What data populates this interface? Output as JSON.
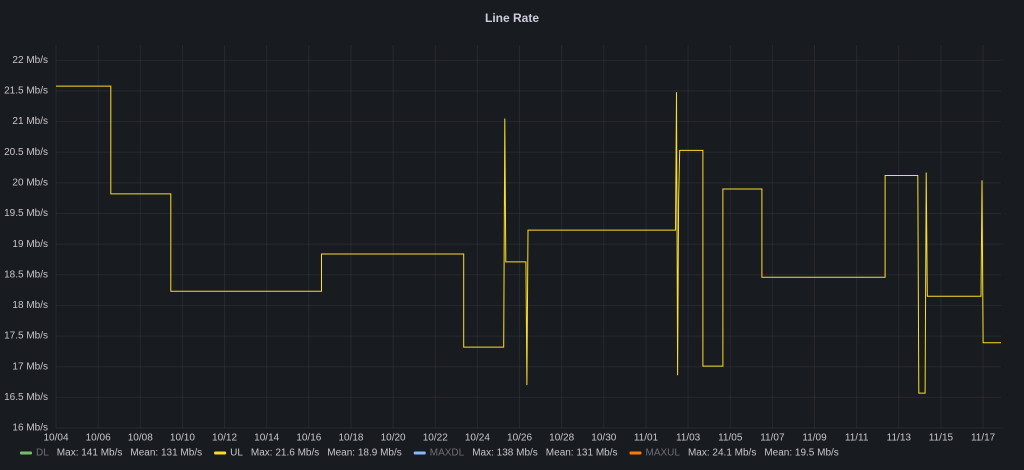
{
  "chart_data": {
    "type": "line",
    "title": "Line Rate",
    "x": [
      0,
      2.6,
      2.6,
      5.45,
      5.45,
      12.6,
      12.6,
      19.35,
      19.35,
      21.25,
      21.3,
      21.35,
      22.3,
      22.35,
      22.4,
      29.4,
      29.45,
      29.5,
      29.55,
      29.6,
      30.7,
      30.7,
      31.65,
      31.65,
      33.5,
      33.5,
      39.35,
      39.35,
      40.9,
      40.95,
      41.25,
      41.3,
      41.35,
      43.9,
      43.95,
      44.0,
      44.85
    ],
    "series": [
      {
        "name": "DL",
        "color": "#73bf69",
        "hidden": true,
        "max": "Max: 141 Mb/s",
        "mean": "Mean: 131 Mb/s"
      },
      {
        "name": "UL",
        "color": "#fade2a",
        "hidden": false,
        "max": "Max: 21.6 Mb/s",
        "mean": "Mean: 18.9 Mb/s",
        "values": [
          21.58,
          21.58,
          19.82,
          19.82,
          18.23,
          18.23,
          18.84,
          18.84,
          17.32,
          17.32,
          21.05,
          18.71,
          18.71,
          16.7,
          19.23,
          19.23,
          21.48,
          16.86,
          19.72,
          20.53,
          20.53,
          17.01,
          17.01,
          19.9,
          19.9,
          18.46,
          18.46,
          20.12,
          20.12,
          16.57,
          16.57,
          20.17,
          18.15,
          18.15,
          20.04,
          17.39,
          17.39
        ]
      },
      {
        "name": "MAXDL",
        "color": "#8ab8ff",
        "hidden": true,
        "max": "Max: 138 Mb/s",
        "mean": "Mean: 131 Mb/s"
      },
      {
        "name": "MAXUL",
        "color": "#ff780a",
        "hidden": true,
        "max": "Max: 24.1 Mb/s",
        "mean": "Mean: 19.5 Mb/s"
      }
    ],
    "xlim": [
      0,
      44.85
    ],
    "xticks": [
      {
        "value": 0,
        "label": "10/04"
      },
      {
        "value": 2,
        "label": "10/06"
      },
      {
        "value": 4,
        "label": "10/08"
      },
      {
        "value": 6,
        "label": "10/10"
      },
      {
        "value": 8,
        "label": "10/12"
      },
      {
        "value": 10,
        "label": "10/14"
      },
      {
        "value": 12,
        "label": "10/16"
      },
      {
        "value": 14,
        "label": "10/18"
      },
      {
        "value": 16,
        "label": "10/20"
      },
      {
        "value": 18,
        "label": "10/22"
      },
      {
        "value": 20,
        "label": "10/24"
      },
      {
        "value": 22,
        "label": "10/26"
      },
      {
        "value": 24,
        "label": "10/28"
      },
      {
        "value": 26,
        "label": "10/30"
      },
      {
        "value": 28,
        "label": "11/01"
      },
      {
        "value": 30,
        "label": "11/03"
      },
      {
        "value": 32,
        "label": "11/05"
      },
      {
        "value": 34,
        "label": "11/07"
      },
      {
        "value": 36,
        "label": "11/09"
      },
      {
        "value": 38,
        "label": "11/11"
      },
      {
        "value": 40,
        "label": "11/13"
      },
      {
        "value": 42,
        "label": "11/15"
      },
      {
        "value": 44,
        "label": "11/17"
      }
    ],
    "ylim": [
      16,
      22.25
    ],
    "yticks": [
      {
        "value": 16,
        "label": "16 Mb/s"
      },
      {
        "value": 16.5,
        "label": "16.5 Mb/s"
      },
      {
        "value": 17,
        "label": "17 Mb/s"
      },
      {
        "value": 17.5,
        "label": "17.5 Mb/s"
      },
      {
        "value": 18,
        "label": "18 Mb/s"
      },
      {
        "value": 18.5,
        "label": "18.5 Mb/s"
      },
      {
        "value": 19,
        "label": "19 Mb/s"
      },
      {
        "value": 19.5,
        "label": "19.5 Mb/s"
      },
      {
        "value": 20,
        "label": "20 Mb/s"
      },
      {
        "value": 20.5,
        "label": "20.5 Mb/s"
      },
      {
        "value": 21,
        "label": "21 Mb/s"
      },
      {
        "value": 21.5,
        "label": "21.5 Mb/s"
      },
      {
        "value": 22,
        "label": "22 Mb/s"
      }
    ],
    "grid": true
  }
}
